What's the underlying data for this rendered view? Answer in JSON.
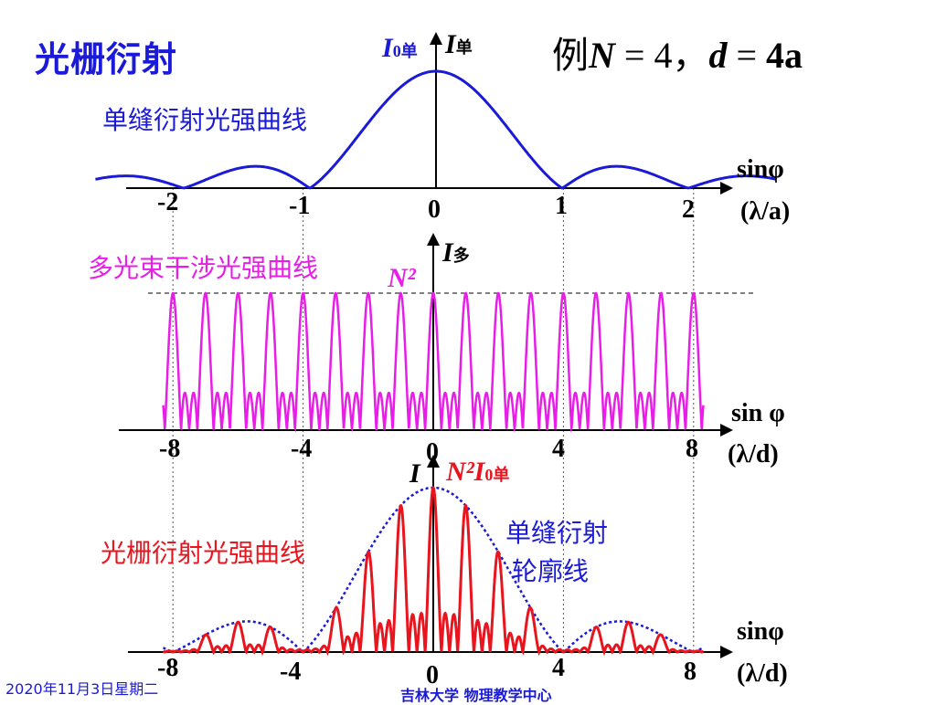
{
  "title": "光栅衍射",
  "example": {
    "prefix": "例",
    "N": "N",
    "eq1": " = 4，",
    "d": "d",
    "eq2": " = ",
    "rhs": "4a"
  },
  "panel1": {
    "label": "单缝衍射光强曲线",
    "y_axis_main": "I",
    "y_axis_sub": "单",
    "peak_main": "I",
    "peak_sub": "0单",
    "x_axis": "sinφ",
    "unit": "(λ/a)",
    "ticks": [
      "-2",
      "-1",
      "0",
      "1",
      "2"
    ]
  },
  "panel2": {
    "label": "多光束干涉光强曲线",
    "y_axis_main": "I",
    "y_axis_sub": "多",
    "peak_label": "N²",
    "x_axis": "sin φ",
    "unit": "(λ/d)",
    "ticks": [
      "-8",
      "-4",
      "0",
      "4",
      "8"
    ]
  },
  "panel3": {
    "label": "光栅衍射光强曲线",
    "envelope_label_line1": "单缝衍射",
    "envelope_label_line2": "轮廓线",
    "y_axis": "I",
    "peak_label_main": "N²I",
    "peak_label_sub": "0单",
    "x_axis": "sinφ",
    "unit": "(λ/d)",
    "ticks": [
      "-8",
      "-4",
      "0",
      "4",
      "8"
    ]
  },
  "footer": {
    "date": "2020年11月3日星期二",
    "org": "吉林大学 物理教学中心"
  },
  "colors": {
    "single_slit": "#1a1ad8",
    "multi_beam": "#e81ee8",
    "grating": "#e8141e",
    "axis": "#000000"
  },
  "chart_data": [
    {
      "type": "line",
      "name": "single-slit",
      "N": 4,
      "d_over_a": 4,
      "x_unit": "λ/a",
      "x_range": [
        -2.7,
        2.7
      ],
      "x_ticks": [
        -2,
        -1,
        0,
        1,
        2
      ],
      "minima_at": [
        -2,
        -1,
        1,
        2
      ]
    },
    {
      "type": "line",
      "name": "multi-beam",
      "N": 4,
      "x_unit": "λ/d",
      "x_range": [
        -8.3,
        8.3
      ],
      "principal_maxima_at": [
        -8,
        -7,
        -6,
        -5,
        -4,
        -3,
        -2,
        -1,
        0,
        1,
        2,
        3,
        4,
        5,
        6,
        7,
        8
      ],
      "x_ticks": [
        -8,
        -4,
        0,
        4,
        8
      ]
    },
    {
      "type": "line",
      "name": "grating",
      "N": 4,
      "d_over_a": 4,
      "x_unit": "λ/d",
      "x_range": [
        -8.3,
        8.3
      ],
      "missing_orders": [
        -8,
        -4,
        4,
        8
      ],
      "x_ticks": [
        -8,
        -4,
        0,
        4,
        8
      ]
    }
  ]
}
